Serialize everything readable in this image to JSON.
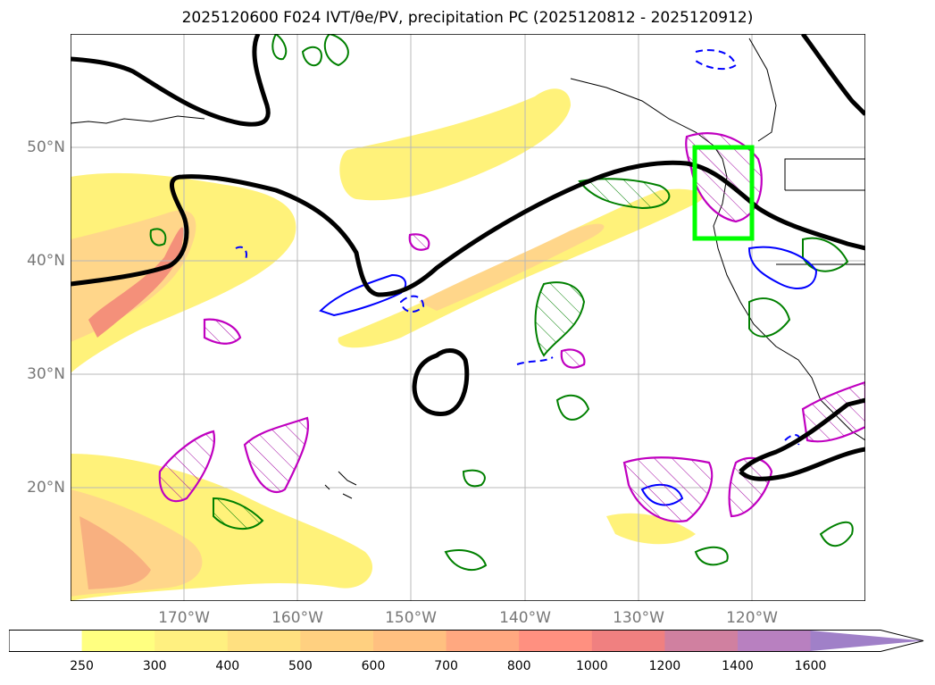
{
  "title": "2025120600 F024 IVT/θe/PV, precipitation PC (2025120812 - 2025120912)",
  "map": {
    "projection": "equirectangular",
    "lon_range": [
      -180,
      -110
    ],
    "lat_range": [
      10,
      60
    ],
    "lat_ticks": [
      "50°N",
      "40°N",
      "30°N",
      "20°N"
    ],
    "lon_ticks": [
      "170°W",
      "160°W",
      "150°W",
      "140°W",
      "130°W",
      "120°W"
    ],
    "highlight_box": {
      "lon": [
        -125,
        -120
      ],
      "lat": [
        42,
        50
      ],
      "color": "#00ff00"
    }
  },
  "colorbar": {
    "ticks": [
      "250",
      "300",
      "400",
      "500",
      "600",
      "700",
      "800",
      "1000",
      "1200",
      "1400",
      "1600"
    ],
    "colors": [
      "#ffffff",
      "#ffff80",
      "#fff080",
      "#ffe080",
      "#ffd080",
      "#ffc080",
      "#ffa880",
      "#ff9080",
      "#f08080",
      "#d080a0",
      "#b880c0",
      "#a080c8"
    ]
  }
}
